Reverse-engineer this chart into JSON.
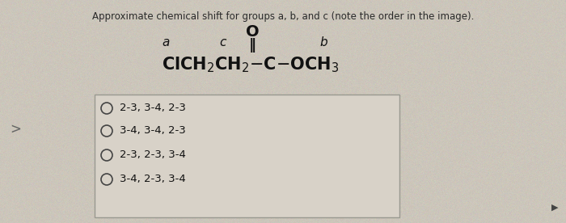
{
  "title": "Approximate chemical shift for groups a, b, and c (note the order in the image).",
  "title_fontsize": 8.5,
  "title_color": "#2a2a2a",
  "background_color": "#ccc6bb",
  "options": [
    "2-3, 3-4, 2-3",
    "3-4, 3-4, 2-3",
    "2-3, 2-3, 3-4",
    "3-4, 2-3, 3-4"
  ],
  "option_fontsize": 9.5,
  "box_facecolor": "#d8d2c8",
  "box_edgecolor": "#999990",
  "radio_circle_color": "#444444",
  "formula_fontsize": 15,
  "label_fontsize": 11,
  "O_fontsize": 14,
  "doublebond_fontsize": 13
}
